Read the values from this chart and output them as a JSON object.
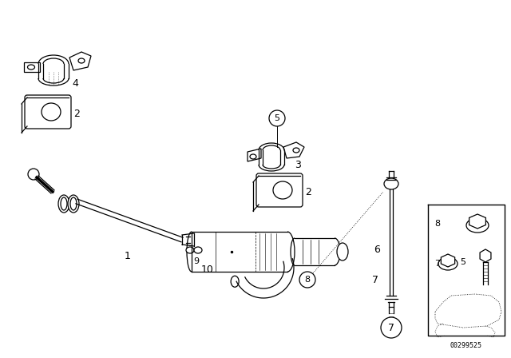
{
  "bg_color": "#ffffff",
  "diagram_number": "00299525",
  "line_color": "#000000",
  "lw": 0.9,
  "figsize": [
    6.4,
    4.48
  ],
  "dpi": 100
}
